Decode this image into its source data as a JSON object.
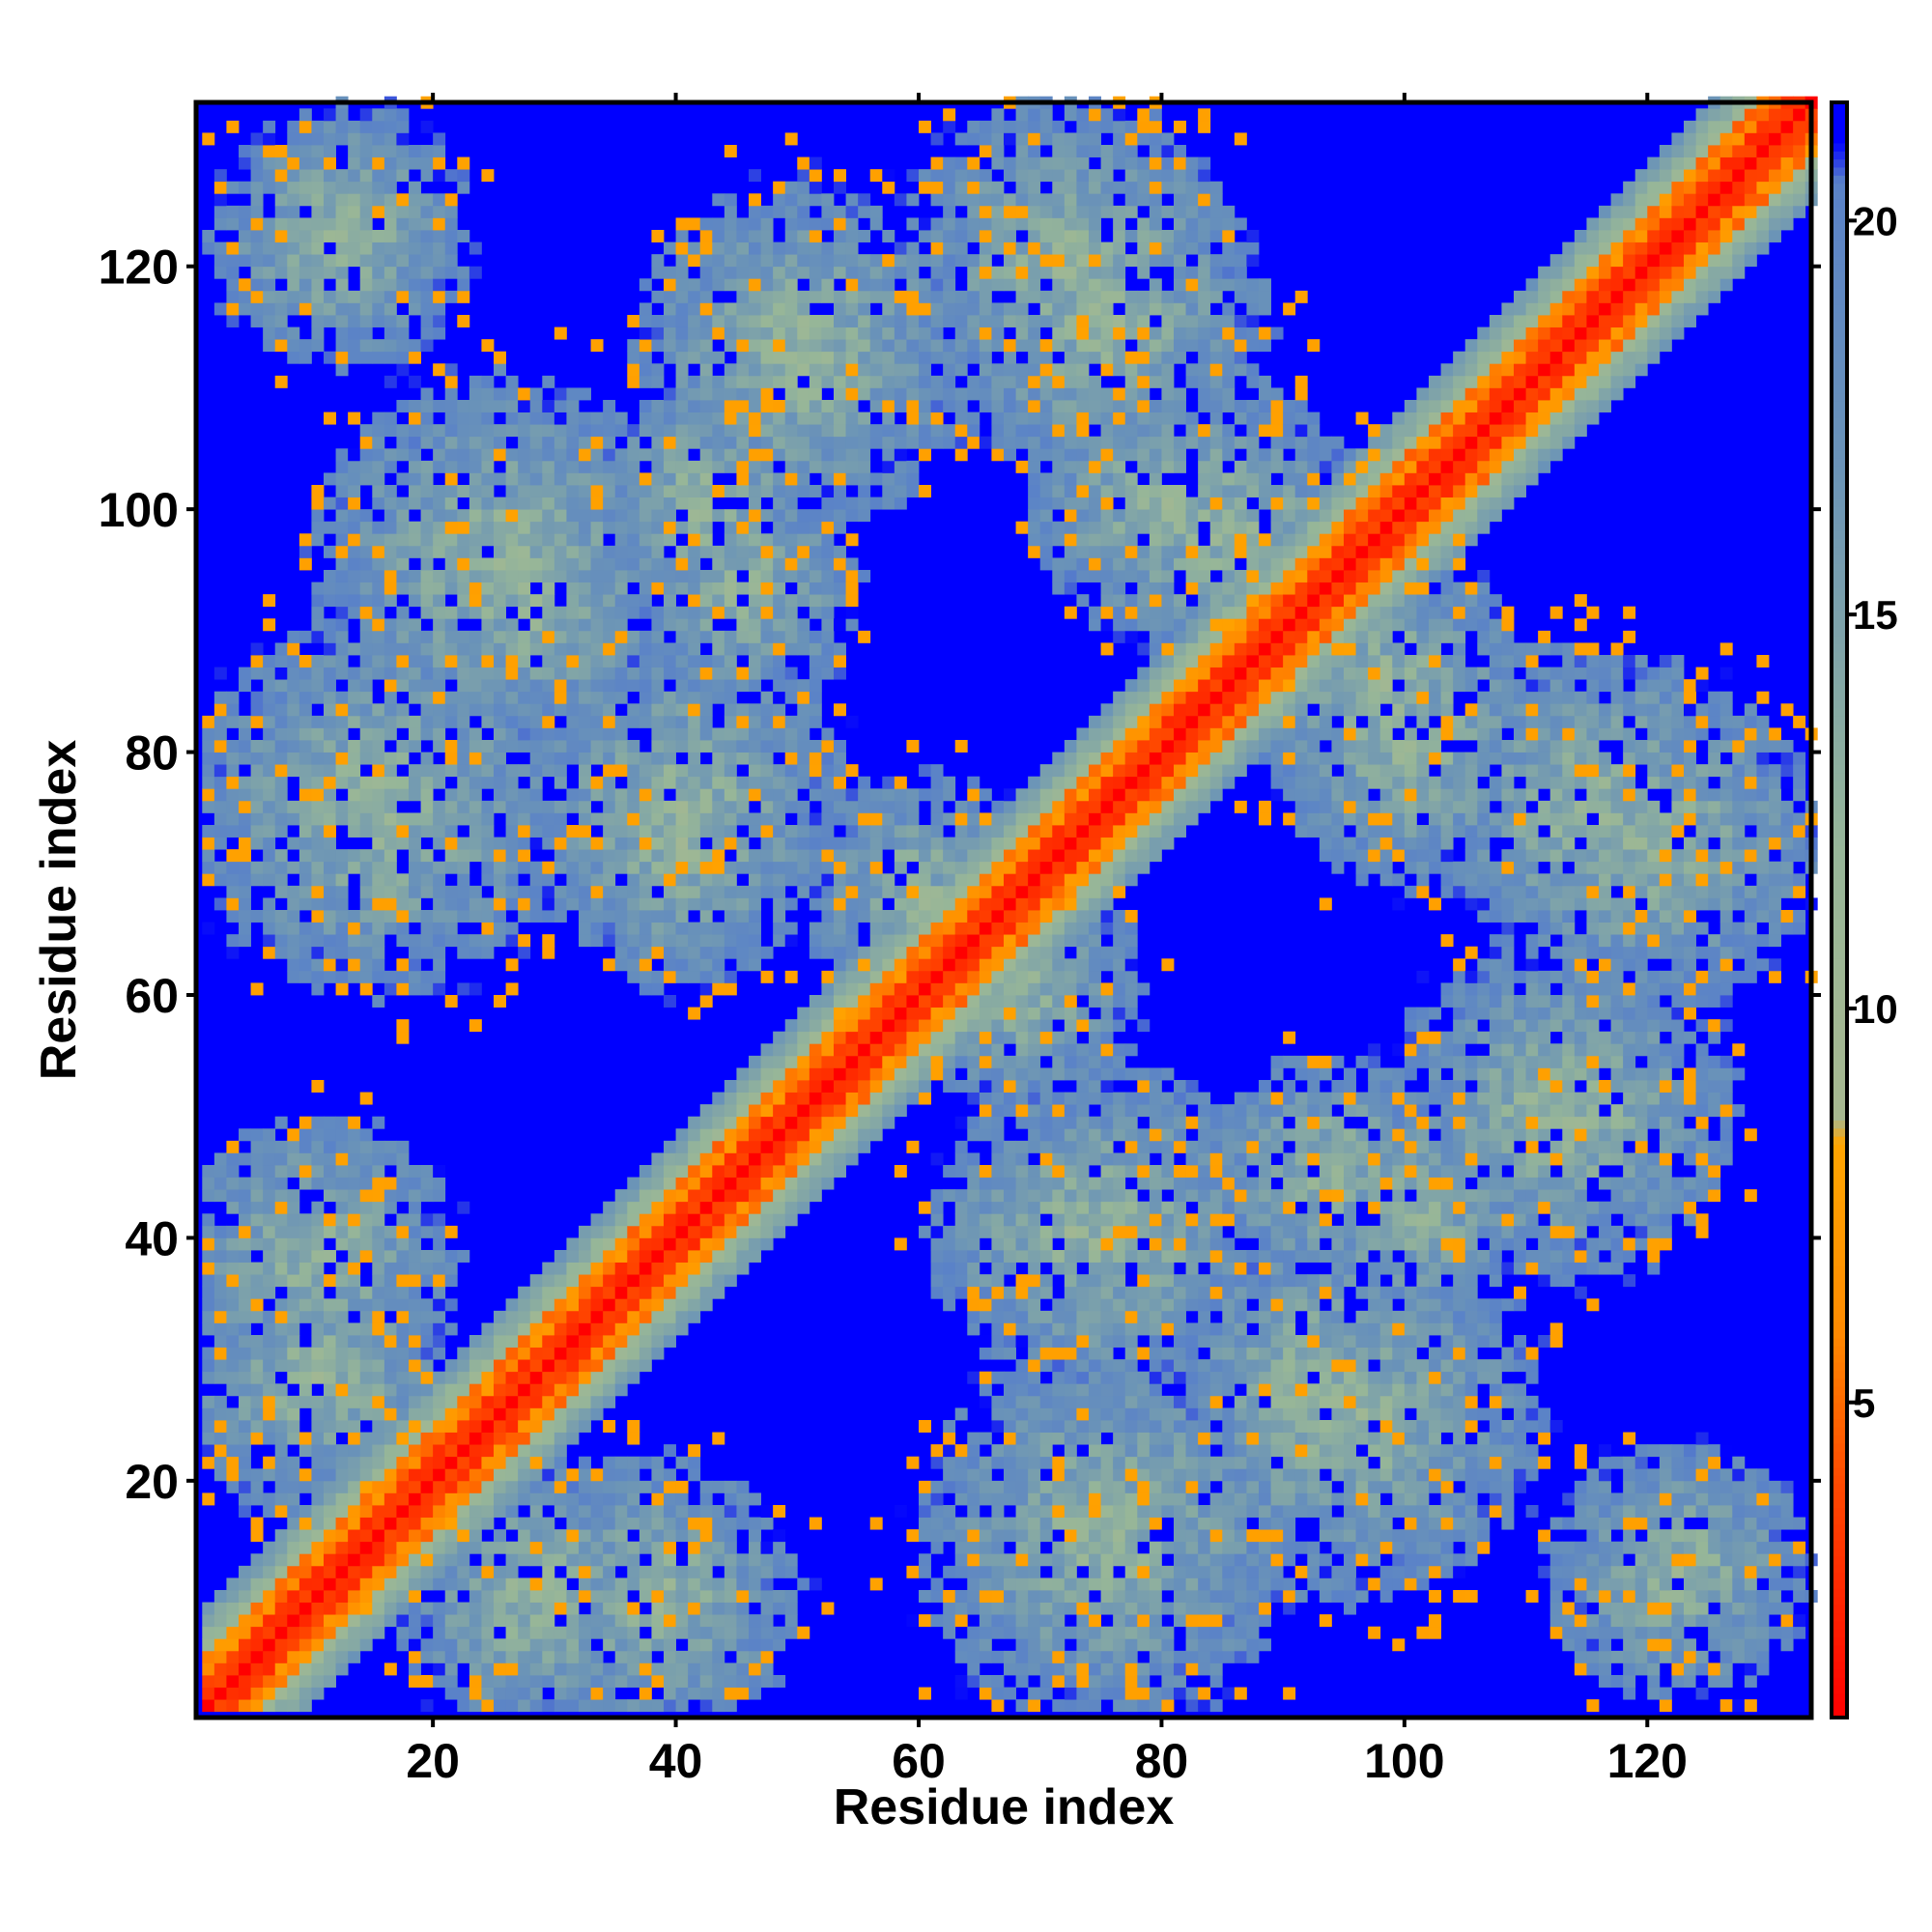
{
  "chart_data": {
    "type": "heatmap",
    "title": "",
    "xlabel": "Residue index",
    "ylabel": "Residue index",
    "n_residues": 133,
    "xlim": [
      1,
      133
    ],
    "ylim": [
      1,
      133
    ],
    "x_ticks": [
      20,
      40,
      60,
      80,
      100,
      120
    ],
    "y_ticks": [
      20,
      40,
      60,
      80,
      100,
      120
    ],
    "colorbar": {
      "ticks": [
        5,
        10,
        15,
        20
      ],
      "range": [
        1,
        21.5
      ],
      "stops": [
        {
          "value": 1.0,
          "color": "#ff0000"
        },
        {
          "value": 4.0,
          "color": "#ff4a00"
        },
        {
          "value": 6.0,
          "color": "#ff8c00"
        },
        {
          "value": 8.3,
          "color": "#ffa500"
        },
        {
          "value": 8.6,
          "color": "#a7b890"
        },
        {
          "value": 12.0,
          "color": "#97b698"
        },
        {
          "value": 17.0,
          "color": "#6a93b8"
        },
        {
          "value": 20.5,
          "color": "#5a82c8"
        },
        {
          "value": 21.0,
          "color": "#0000ff"
        }
      ]
    },
    "background_color": "#0000ff",
    "contact_bands": [
      {
        "name": "diagonal",
        "offset_start": 0,
        "residues": [
          1,
          133
        ]
      },
      {
        "cx": 12,
        "cy": 122,
        "r": 11
      },
      {
        "cx": 50,
        "cy": 113,
        "r": 14
      },
      {
        "cx": 75,
        "cy": 115,
        "r": 14
      },
      {
        "cx": 85,
        "cy": 98,
        "r": 12
      },
      {
        "cx": 25,
        "cy": 95,
        "r": 16
      },
      {
        "cx": 45,
        "cy": 93,
        "r": 10
      },
      {
        "cx": 15,
        "cy": 75,
        "r": 16
      },
      {
        "cx": 40,
        "cy": 72,
        "r": 12
      },
      {
        "cx": 68,
        "cy": 60,
        "r": 10
      },
      {
        "cx": 100,
        "cy": 80,
        "r": 12
      },
      {
        "cx": 120,
        "cy": 72,
        "r": 14
      },
      {
        "cx": 112,
        "cy": 50,
        "r": 14
      },
      {
        "cx": 10,
        "cy": 38,
        "r": 12
      },
      {
        "cx": 28,
        "cy": 10,
        "r": 12
      },
      {
        "cx": 75,
        "cy": 40,
        "r": 14
      },
      {
        "cx": 75,
        "cy": 15,
        "r": 12
      },
      {
        "cx": 92,
        "cy": 28,
        "r": 12
      },
      {
        "cx": 122,
        "cy": 12,
        "r": 11
      },
      {
        "cx": 100,
        "cy": 42,
        "r": 10
      }
    ]
  }
}
